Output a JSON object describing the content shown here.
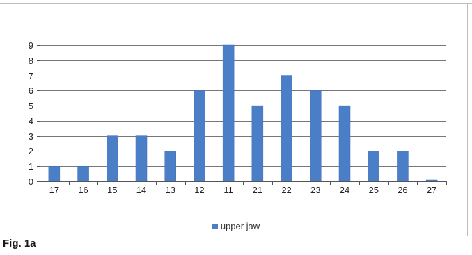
{
  "figure_label": "Fig. 1a",
  "colors": {
    "bar": "#4a7fc8",
    "bar_edge": "#3d6db4",
    "grid": "#777777",
    "axis": "#555555",
    "frame": "#bdbdbd"
  },
  "chart_data": {
    "type": "bar",
    "categories": [
      "17",
      "16",
      "15",
      "14",
      "13",
      "12",
      "11",
      "21",
      "22",
      "23",
      "24",
      "25",
      "26",
      "27"
    ],
    "series": [
      {
        "name": "upper jaw",
        "values": [
          1,
          1,
          3,
          3,
          2,
          6,
          9,
          5,
          7,
          6,
          5,
          2,
          2,
          0
        ]
      }
    ],
    "title": "",
    "xlabel": "",
    "ylabel": "",
    "ylim": [
      0,
      9
    ],
    "yticks": [
      0,
      1,
      2,
      3,
      4,
      5,
      6,
      7,
      8,
      9
    ],
    "grid": true,
    "legend": "bottom"
  }
}
